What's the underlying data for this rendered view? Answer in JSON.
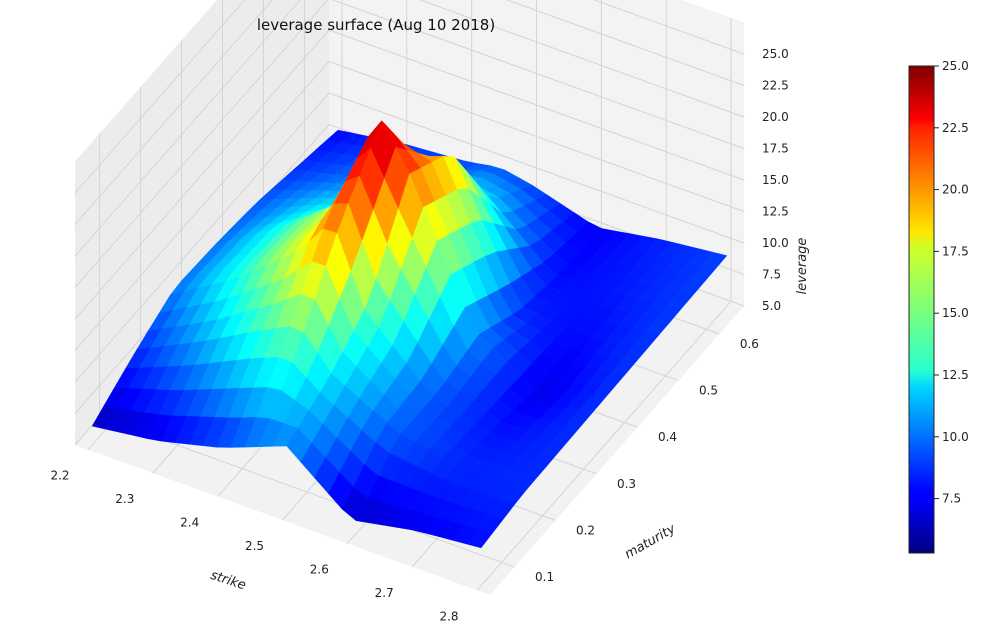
{
  "chart_data": {
    "type": "surface3d",
    "title": "leverage surface (Aug 10 2018)",
    "xlabel": "strike",
    "ylabel": "maturity",
    "zlabel": "leverage",
    "xlim": [
      2.18,
      2.82
    ],
    "ylim": [
      0.04,
      0.66
    ],
    "zlim": [
      5.0,
      27.5
    ],
    "x_ticks": [
      "2.2",
      "2.3",
      "2.4",
      "2.5",
      "2.6",
      "2.7",
      "2.8"
    ],
    "y_ticks": [
      "0.1",
      "0.2",
      "0.3",
      "0.4",
      "0.5",
      "0.6"
    ],
    "z_ticks": [
      "5.0",
      "7.5",
      "10.0",
      "12.5",
      "15.0",
      "17.5",
      "20.0",
      "22.5",
      "25.0"
    ],
    "colorbar": {
      "colormap": "jet",
      "min": 5.3,
      "max": 25.0,
      "ticks": [
        "7.5",
        "10.0",
        "12.5",
        "15.0",
        "17.5",
        "20.0",
        "22.5",
        "25.0"
      ]
    },
    "grid": true,
    "strikes": [
      2.2,
      2.3,
      2.4,
      2.45,
      2.5,
      2.6,
      2.7,
      2.8
    ],
    "maturities": [
      0.05,
      0.15,
      0.25,
      0.35,
      0.45,
      0.55,
      0.65
    ],
    "leverage": [
      [
        6.5,
        8.4,
        10.0,
        9.8,
        9.4,
        8.6,
        7.8
      ],
      [
        7.2,
        10.8,
        13.2,
        13.0,
        11.5,
        9.8,
        8.6
      ],
      [
        8.5,
        13.5,
        17.5,
        17.0,
        13.0,
        10.5,
        9.0
      ],
      [
        9.5,
        14.5,
        21.0,
        25.0,
        17.0,
        12.0,
        9.5
      ],
      [
        10.5,
        12.0,
        14.5,
        21.0,
        19.0,
        11.5,
        9.0
      ],
      [
        6.5,
        9.5,
        9.5,
        10.5,
        8.5,
        7.8,
        7.5
      ],
      [
        7.5,
        8.5,
        8.0,
        7.2,
        7.8,
        8.2,
        8.4
      ],
      [
        8.0,
        8.5,
        8.6,
        8.7,
        8.8,
        8.9,
        9.0
      ]
    ]
  }
}
